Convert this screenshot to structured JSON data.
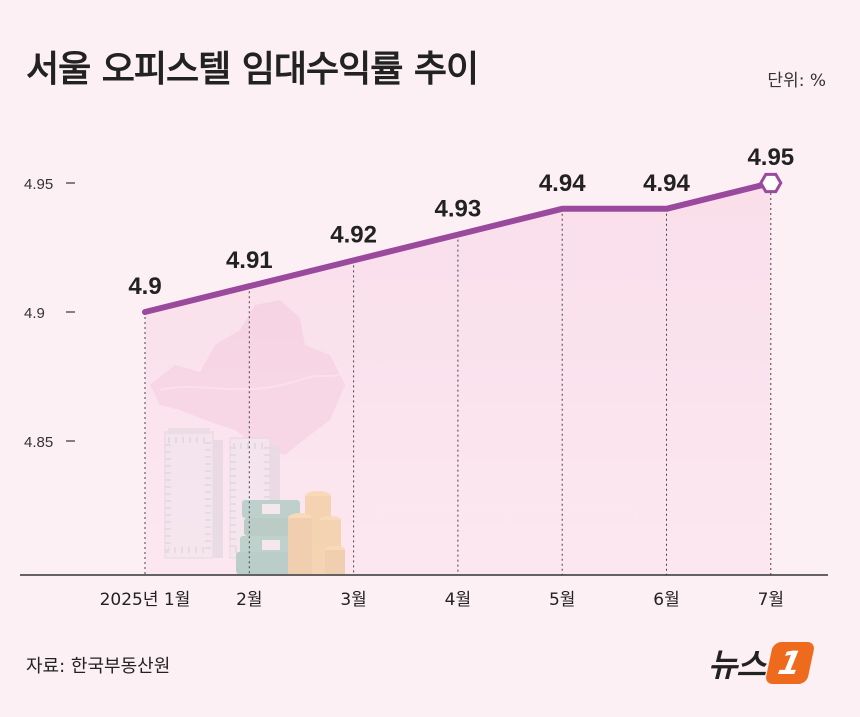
{
  "title": "서울 오피스텔 임대수익률 추이",
  "unit_label": "단위: %",
  "source": "자료: 한국부동산원",
  "logo": {
    "text": "뉴스",
    "badge": "1"
  },
  "colors": {
    "line": "#9a4a9c",
    "area": "#f8d6e6",
    "map": "#f1c7da",
    "background": "#fdf0f5",
    "axis": "#333333"
  },
  "chart_data": {
    "type": "line",
    "x": [
      "2025년 1월",
      "2월",
      "3월",
      "4월",
      "5월",
      "6월",
      "7월"
    ],
    "series": [
      {
        "values": [
          4.9,
          4.91,
          4.92,
          4.93,
          4.94,
          4.94,
          4.95
        ]
      }
    ],
    "data_labels": [
      "4.9",
      "4.91",
      "4.92",
      "4.93",
      "4.94",
      "4.94",
      "4.95"
    ],
    "y_ticks": [
      4.85,
      4.9,
      4.95
    ],
    "y_tick_labels": [
      "4.85",
      "4.9",
      "4.95"
    ],
    "ylim": [
      4.8,
      4.9605
    ],
    "grid": false,
    "area_fill": true,
    "xlabel": "",
    "ylabel": ""
  }
}
